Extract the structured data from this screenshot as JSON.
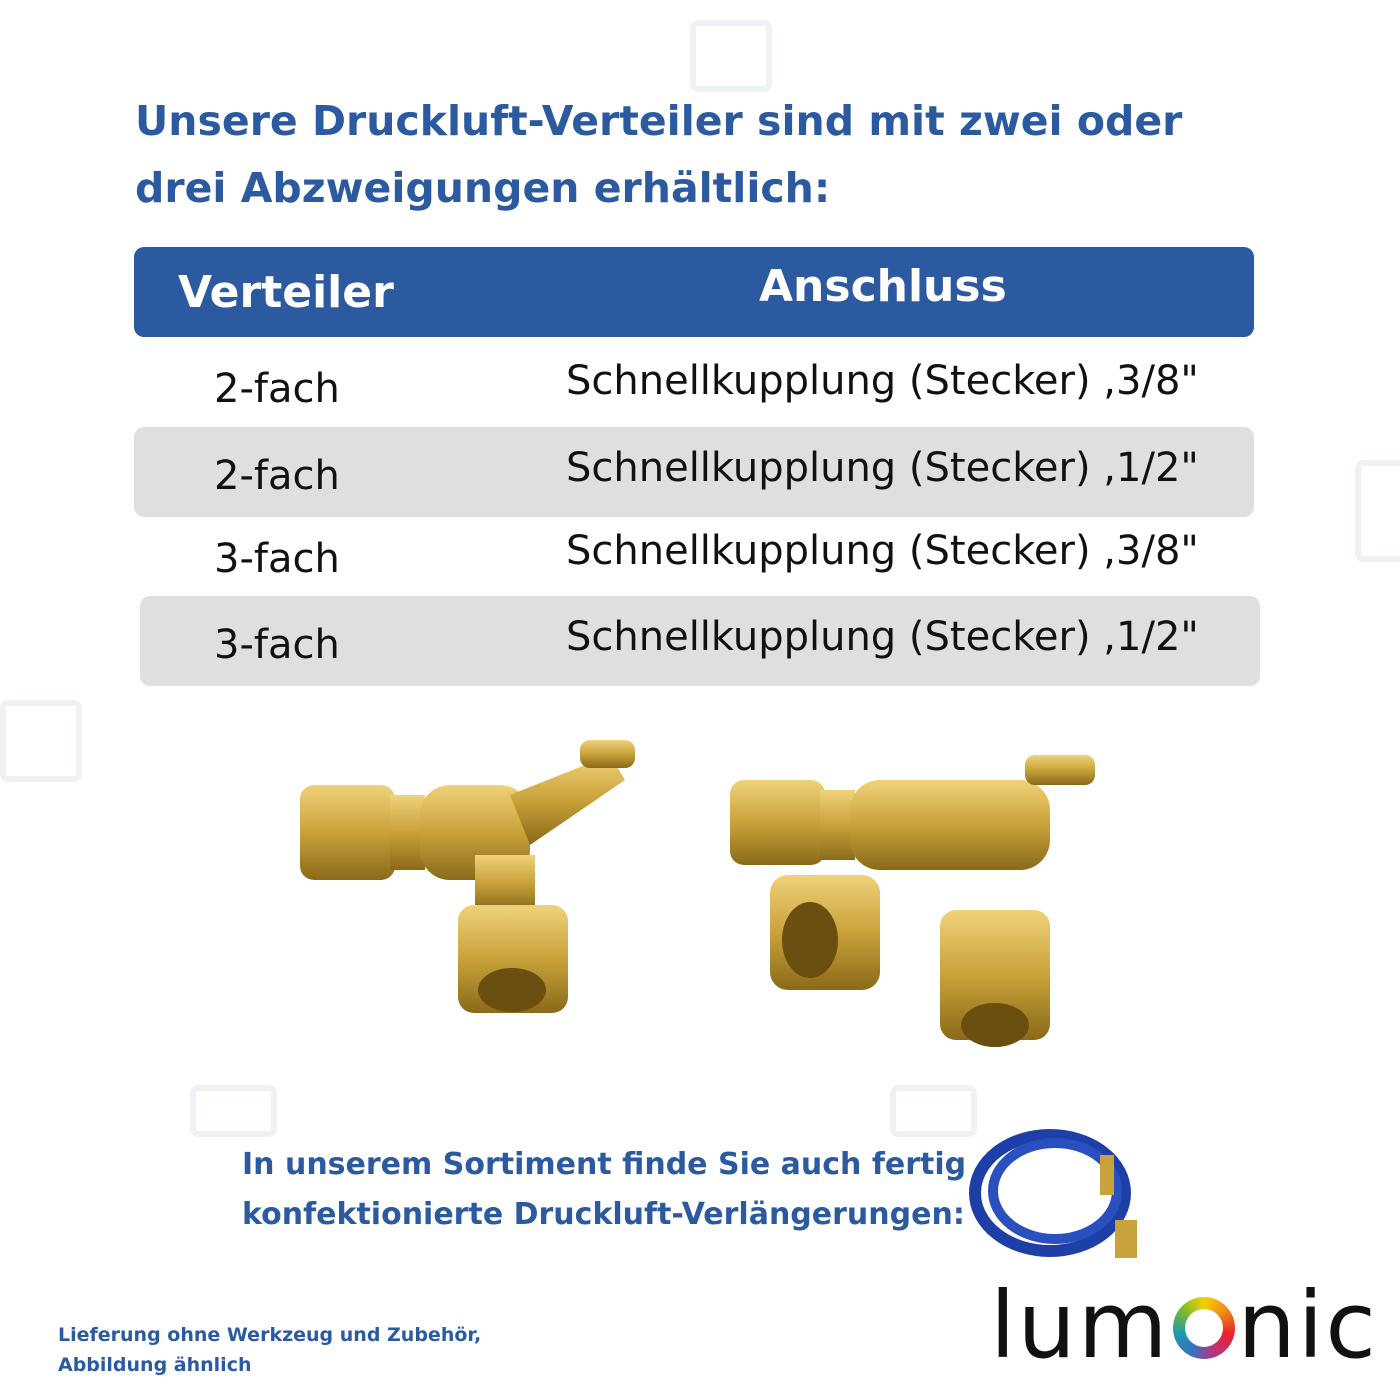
{
  "title": "Unsere Druckluft-Verteiler sind mit zwei oder drei Abzweigungen erhältlich:",
  "table": {
    "headers": [
      "Verteiler",
      "Anschluss"
    ],
    "rows": [
      {
        "verteiler": "2-fach",
        "anschluss": "Schnellkupplung (Stecker) ,3/8\""
      },
      {
        "verteiler": "2-fach",
        "anschluss": "Schnellkupplung (Stecker) ,1/2\""
      },
      {
        "verteiler": "3-fach",
        "anschluss": "Schnellkupplung (Stecker) ,3/8\""
      },
      {
        "verteiler": "3-fach",
        "anschluss": "Schnellkupplung (Stecker) ,1/2\""
      }
    ]
  },
  "promo_text": {
    "line1": "In unserem Sortiment finde Sie auch fertig",
    "line2": "konfektionierte Druckluft-Verlängerungen:"
  },
  "note": {
    "line1": "Lieferung ohne Werkzeug und Zubehör,",
    "line2": "Abbildung ähnlich"
  },
  "logo": {
    "pre": "lum",
    "post": "nic",
    "full": "lumOnic"
  },
  "colors": {
    "accent": "#2c5aa0",
    "row_shade": "#dedfe0",
    "brass": "#c9a23a"
  }
}
